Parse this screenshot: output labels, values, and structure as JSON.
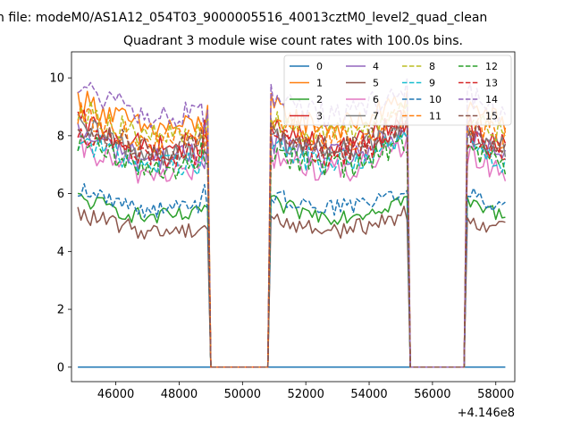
{
  "suptitle": "n file: modeM0/AS1A12_054T03_9000005516_40013cztM0_level2_quad_clean",
  "chart_data": {
    "type": "line",
    "title": "Quadrant 3 module wise count rates with 100.0s bins.",
    "xlabel": "",
    "ylabel": "",
    "x_offset_label": "+4.146e8",
    "xlim": [
      44600,
      58600
    ],
    "ylim": [
      -0.5,
      10.9
    ],
    "xticks": [
      46000,
      48000,
      50000,
      52000,
      54000,
      56000,
      58000
    ],
    "yticks": [
      0,
      2,
      4,
      6,
      8,
      10
    ],
    "grid": false,
    "legend_position": "top-right",
    "on_intervals": [
      [
        44800,
        48900
      ],
      [
        50900,
        55200
      ],
      [
        57100,
        58300
      ]
    ],
    "series": [
      {
        "name": "0",
        "level": 0.0,
        "color": "#1f77b4",
        "dash": "solid"
      },
      {
        "name": "1",
        "level": 8.6,
        "color": "#ff7f0e",
        "dash": "solid"
      },
      {
        "name": "2",
        "level": 5.4,
        "color": "#2ca02c",
        "dash": "solid"
      },
      {
        "name": "3",
        "level": 7.9,
        "color": "#d62728",
        "dash": "solid"
      },
      {
        "name": "4",
        "level": 7.5,
        "color": "#9467bd",
        "dash": "solid"
      },
      {
        "name": "5",
        "level": 4.9,
        "color": "#8c564b",
        "dash": "solid"
      },
      {
        "name": "6",
        "level": 7.0,
        "color": "#e377c2",
        "dash": "solid"
      },
      {
        "name": "7",
        "level": 7.7,
        "color": "#7f7f7f",
        "dash": "solid"
      },
      {
        "name": "8",
        "level": 8.3,
        "color": "#bcbd22",
        "dash": "dashed"
      },
      {
        "name": "9",
        "level": 7.3,
        "color": "#17becf",
        "dash": "dashed"
      },
      {
        "name": "10",
        "level": 5.7,
        "color": "#1f77b4",
        "dash": "dashed"
      },
      {
        "name": "11",
        "level": 8.1,
        "color": "#ff7f0e",
        "dash": "dashed"
      },
      {
        "name": "12",
        "level": 7.2,
        "color": "#2ca02c",
        "dash": "dashed"
      },
      {
        "name": "13",
        "level": 7.6,
        "color": "#d62728",
        "dash": "dashed"
      },
      {
        "name": "14",
        "level": 9.0,
        "color": "#9467bd",
        "dash": "dashed"
      },
      {
        "name": "15",
        "level": 7.8,
        "color": "#8c564b",
        "dash": "dashed"
      }
    ]
  }
}
